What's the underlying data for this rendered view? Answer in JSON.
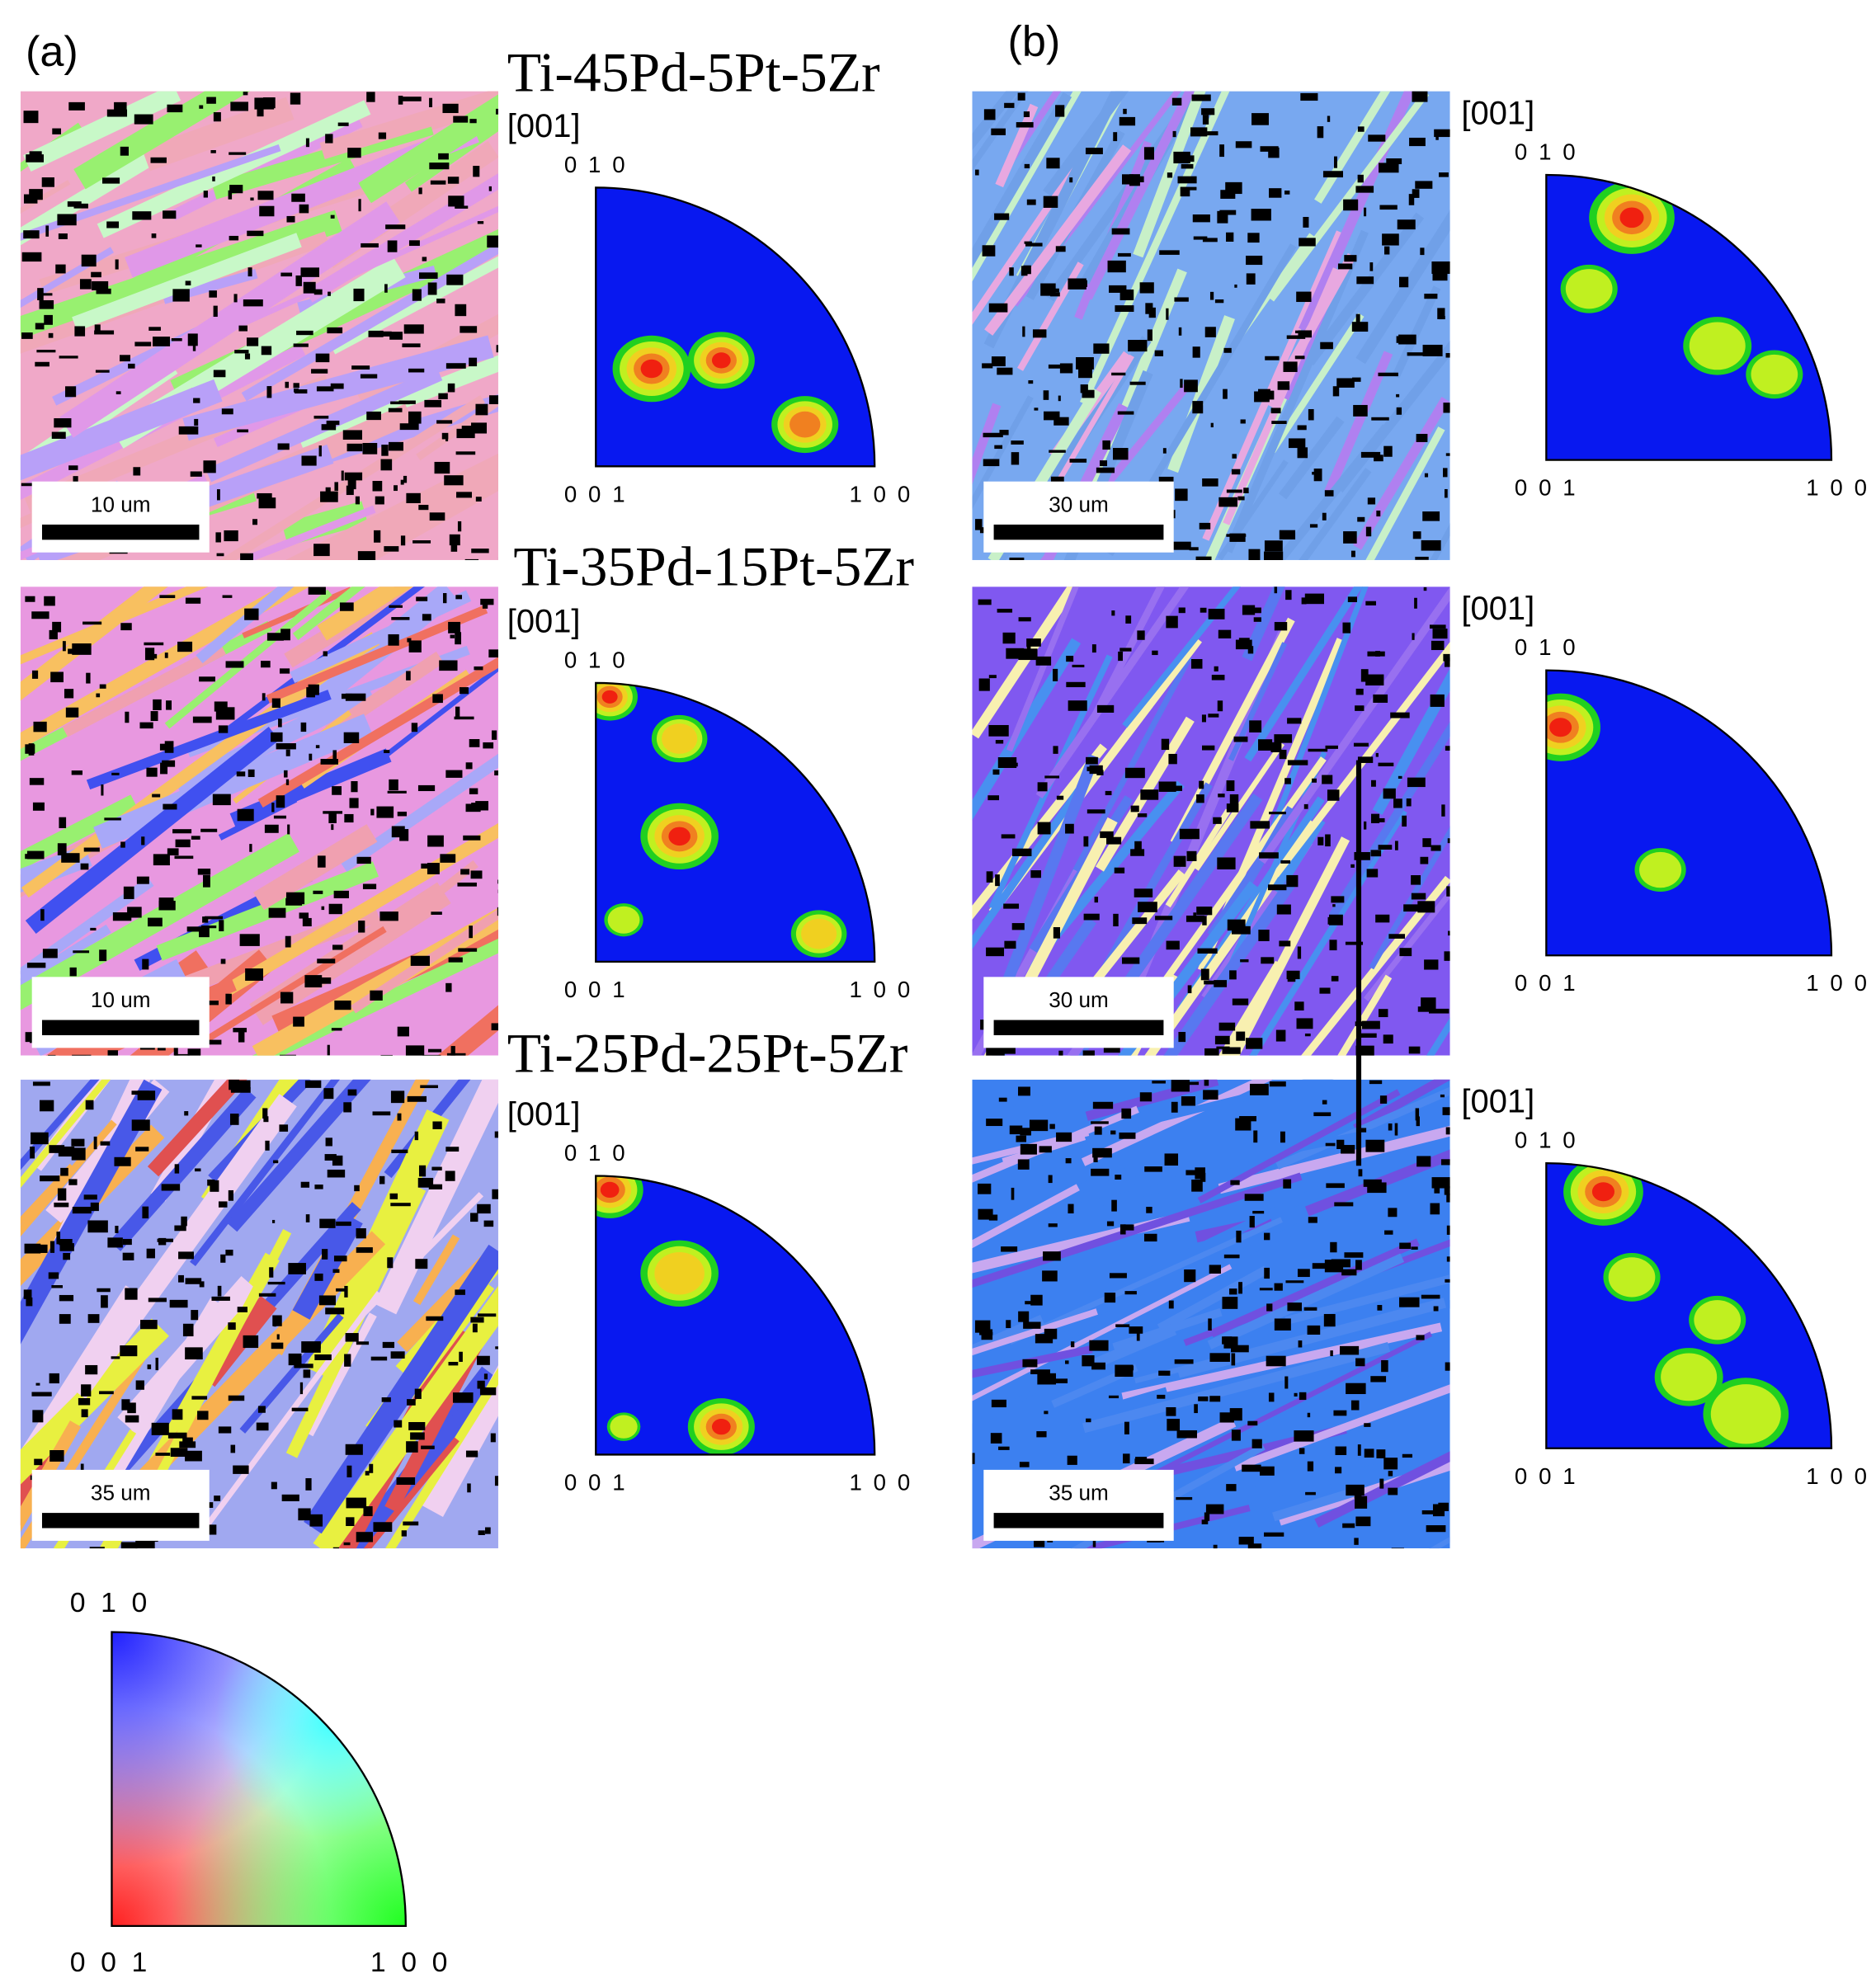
{
  "panels": [
    "(a)",
    "(b)"
  ],
  "rows": [
    {
      "alloy": "Ti-45Pd-5Pt-5Zr",
      "a": {
        "scale_bar": "10 um",
        "pole_figure": {
          "direction": "[001]",
          "corners": [
            "0 1 0",
            "0 0 1",
            "1 0 0"
          ]
        }
      },
      "b": {
        "scale_bar": "30 um",
        "pole_figure": {
          "direction": "[001]",
          "corners": [
            "0 1 0",
            "0 0 1",
            "1 0 0"
          ]
        }
      }
    },
    {
      "alloy": "Ti-35Pd-15Pt-5Zr",
      "a": {
        "scale_bar": "10 um",
        "pole_figure": {
          "direction": "[001]",
          "corners": [
            "0 1 0",
            "0 0 1",
            "1 0 0"
          ]
        }
      },
      "b": {
        "scale_bar": "30 um",
        "pole_figure": {
          "direction": "[001]",
          "corners": [
            "0 1 0",
            "0 0 1",
            "1 0 0"
          ]
        }
      }
    },
    {
      "alloy": "Ti-25Pd-25Pt-5Zr",
      "a": {
        "scale_bar": "35 um",
        "pole_figure": {
          "direction": "[001]",
          "corners": [
            "0 1 0",
            "0 0 1",
            "1 0 0"
          ]
        }
      },
      "b": {
        "scale_bar": "35 um",
        "pole_figure": {
          "direction": "[001]",
          "corners": [
            "0 1 0",
            "0 0 1",
            "1 0 0"
          ]
        }
      }
    }
  ],
  "legend": {
    "corners": [
      "0 1 0",
      "0 0 1",
      "1 0 0"
    ]
  }
}
